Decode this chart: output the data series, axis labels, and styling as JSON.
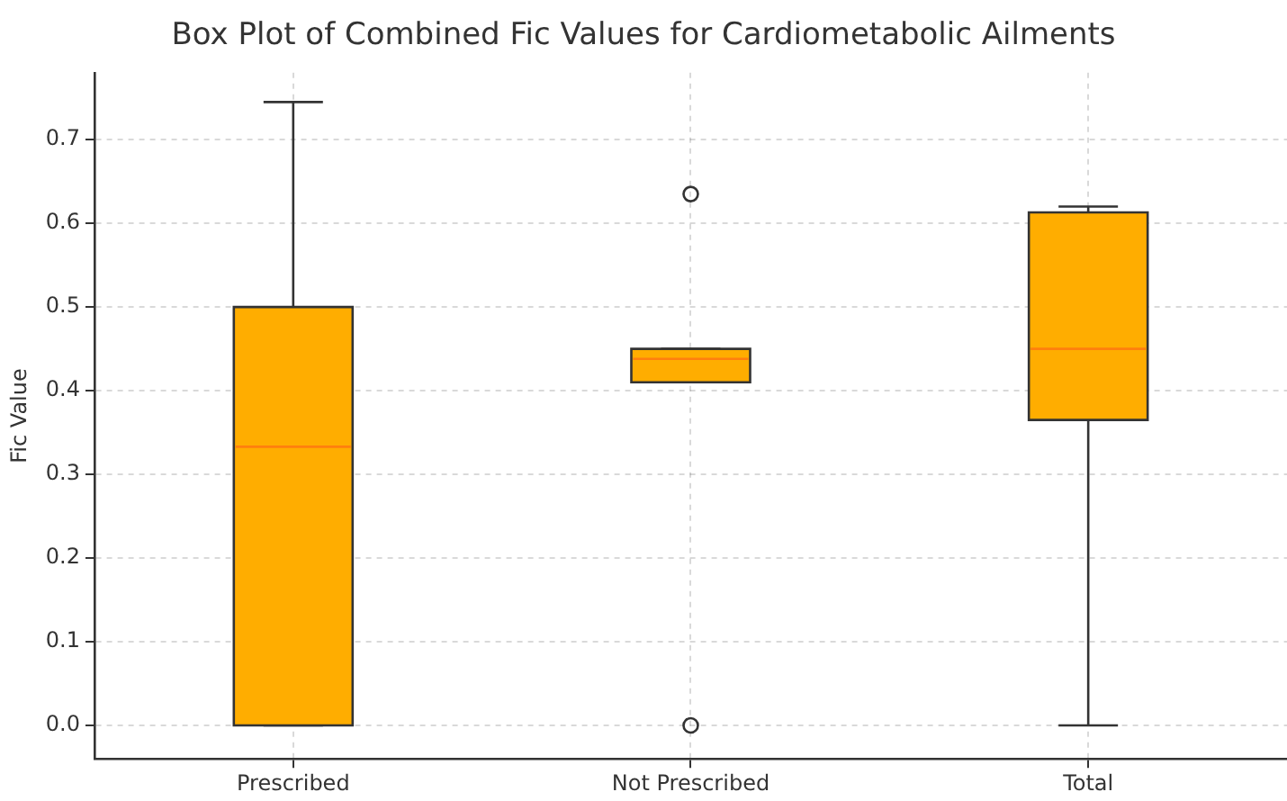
{
  "chart_data": {
    "type": "box",
    "title": "Box Plot of Combined Fic Values for Cardiometabolic Ailments",
    "ylabel": "Fic Value",
    "categories": [
      "Prescribed",
      "Not Prescribed",
      "Total"
    ],
    "boxes": [
      {
        "low": 0,
        "q1": 0,
        "median": 0.333,
        "q3": 0.5,
        "high": 0.745
      },
      {
        "low": 0.41,
        "q1": 0.41,
        "median": 0.438,
        "q3": 0.45,
        "high": 0.45,
        "outliers": [
          0.635,
          0
        ]
      },
      {
        "low": 0,
        "q1": 0.365,
        "median": 0.45,
        "q3": 0.613,
        "high": 0.62
      }
    ],
    "color": "#ffad00",
    "ylim": [
      -0.04,
      0.78
    ],
    "yticks": [
      {
        "value": 0,
        "label": "0.0"
      },
      0.1,
      0.2,
      0.3,
      0.4,
      0.5,
      0.6,
      0.7
    ],
    "grid": true
  }
}
